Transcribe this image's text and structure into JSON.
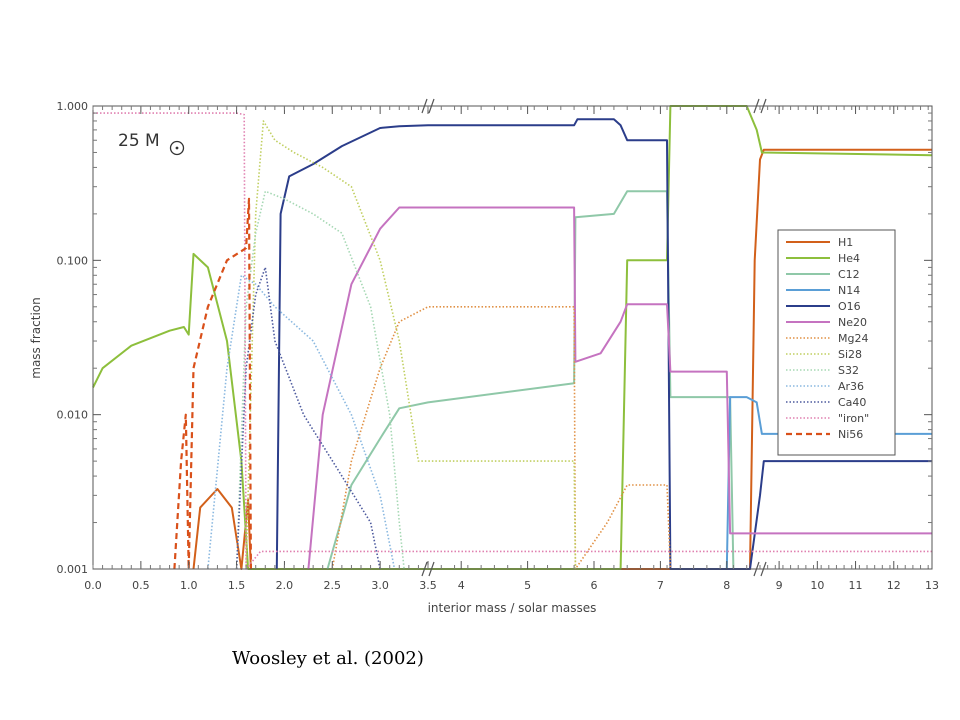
{
  "caption": "Woosley et al. (2002)",
  "chart_data": {
    "type": "line",
    "title": "",
    "annotation": "25 M",
    "xlabel": "interior mass / solar masses",
    "ylabel": "mass fraction",
    "yscale": "log",
    "ylim": [
      0.001,
      1.0
    ],
    "broken_x_axis": true,
    "x_segments": [
      {
        "range": [
          0.0,
          3.5
        ],
        "ticks": [
          "0.0",
          "0.5",
          "1.0",
          "1.5",
          "2.0",
          "2.5",
          "3.0",
          "3.5"
        ]
      },
      {
        "range": [
          3.5,
          8.5
        ],
        "ticks": [
          "4",
          "5",
          "6",
          "7",
          "8"
        ]
      },
      {
        "range": [
          8.5,
          13.0
        ],
        "ticks": [
          "9",
          "10",
          "11",
          "12",
          "13"
        ]
      }
    ],
    "y_ticks": [
      "0.001",
      "0.010",
      "0.100",
      "1.000"
    ],
    "legend_position": "right",
    "series": [
      {
        "name": "H1",
        "color": "#d2601a",
        "dash": "solid",
        "points": [
          [
            1.05,
            0.001
          ],
          [
            1.12,
            0.0025
          ],
          [
            1.3,
            0.0033
          ],
          [
            1.45,
            0.0025
          ],
          [
            1.55,
            0.001
          ],
          [
            1.62,
            0.0028
          ],
          [
            1.65,
            0.001
          ],
          [
            8.35,
            0.001
          ],
          [
            8.42,
            0.1
          ],
          [
            8.5,
            0.45
          ],
          [
            8.6,
            0.52
          ],
          [
            13.0,
            0.52
          ]
        ]
      },
      {
        "name": "He4",
        "color": "#8dbf3c",
        "dash": "solid",
        "points": [
          [
            0.0,
            0.015
          ],
          [
            0.1,
            0.02
          ],
          [
            0.4,
            0.028
          ],
          [
            0.8,
            0.035
          ],
          [
            0.95,
            0.037
          ],
          [
            1.0,
            0.033
          ],
          [
            1.05,
            0.11
          ],
          [
            1.2,
            0.09
          ],
          [
            1.4,
            0.03
          ],
          [
            1.55,
            0.005
          ],
          [
            1.62,
            0.001
          ],
          [
            6.4,
            0.001
          ],
          [
            6.5,
            0.1
          ],
          [
            6.9,
            0.1
          ],
          [
            7.1,
            0.1
          ],
          [
            7.15,
            1.0
          ],
          [
            8.0,
            1.0
          ],
          [
            8.3,
            1.0
          ],
          [
            8.45,
            0.7
          ],
          [
            8.55,
            0.5
          ],
          [
            13.0,
            0.48
          ]
        ]
      },
      {
        "name": "C12",
        "color": "#8fc8a8",
        "dash": "solid",
        "points": [
          [
            2.45,
            0.001
          ],
          [
            2.7,
            0.0035
          ],
          [
            3.0,
            0.007
          ],
          [
            3.2,
            0.011
          ],
          [
            3.5,
            0.012
          ],
          [
            5.7,
            0.016
          ],
          [
            5.72,
            0.19
          ],
          [
            6.3,
            0.2
          ],
          [
            6.5,
            0.28
          ],
          [
            7.1,
            0.28
          ],
          [
            7.15,
            0.013
          ],
          [
            8.0,
            0.013
          ],
          [
            8.05,
            0.013
          ],
          [
            8.1,
            0.001
          ]
        ]
      },
      {
        "name": "N14",
        "color": "#5a9ed6",
        "dash": "solid",
        "points": [
          [
            8.0,
            0.001
          ],
          [
            8.05,
            0.013
          ],
          [
            8.3,
            0.013
          ],
          [
            8.45,
            0.012
          ],
          [
            8.55,
            0.0075
          ],
          [
            13.0,
            0.0075
          ]
        ]
      },
      {
        "name": "O16",
        "color": "#2b3d8a",
        "dash": "solid",
        "points": [
          [
            1.92,
            0.001
          ],
          [
            1.96,
            0.2
          ],
          [
            2.05,
            0.35
          ],
          [
            2.3,
            0.42
          ],
          [
            2.6,
            0.55
          ],
          [
            3.0,
            0.72
          ],
          [
            3.2,
            0.74
          ],
          [
            3.5,
            0.75
          ],
          [
            5.7,
            0.75
          ],
          [
            5.75,
            0.82
          ],
          [
            6.3,
            0.82
          ],
          [
            6.4,
            0.75
          ],
          [
            6.5,
            0.6
          ],
          [
            7.1,
            0.6
          ],
          [
            7.15,
            0.001
          ],
          [
            8.35,
            0.001
          ],
          [
            8.5,
            0.003
          ],
          [
            8.6,
            0.005
          ],
          [
            13.0,
            0.005
          ]
        ]
      },
      {
        "name": "Ne20",
        "color": "#c573c0",
        "dash": "solid",
        "points": [
          [
            2.25,
            0.001
          ],
          [
            2.4,
            0.01
          ],
          [
            2.7,
            0.07
          ],
          [
            3.0,
            0.16
          ],
          [
            3.2,
            0.22
          ],
          [
            3.5,
            0.22
          ],
          [
            5.7,
            0.22
          ],
          [
            5.72,
            0.022
          ],
          [
            6.1,
            0.025
          ],
          [
            6.4,
            0.04
          ],
          [
            6.5,
            0.052
          ],
          [
            7.1,
            0.052
          ],
          [
            7.15,
            0.019
          ],
          [
            8.0,
            0.019
          ],
          [
            8.05,
            0.0017
          ],
          [
            13.0,
            0.0017
          ]
        ]
      },
      {
        "name": "Mg24",
        "color": "#e09044",
        "dash": "dotted",
        "points": [
          [
            2.5,
            0.001
          ],
          [
            2.7,
            0.005
          ],
          [
            3.0,
            0.02
          ],
          [
            3.2,
            0.04
          ],
          [
            3.5,
            0.05
          ],
          [
            5.7,
            0.05
          ],
          [
            5.72,
            0.001
          ],
          [
            6.2,
            0.002
          ],
          [
            6.5,
            0.0035
          ],
          [
            7.1,
            0.0035
          ],
          [
            7.15,
            0.001
          ]
        ]
      },
      {
        "name": "Si28",
        "color": "#c0cf60",
        "dash": "dotted",
        "points": [
          [
            1.6,
            0.001
          ],
          [
            1.7,
            0.2
          ],
          [
            1.78,
            0.8
          ],
          [
            1.9,
            0.6
          ],
          [
            2.1,
            0.5
          ],
          [
            2.4,
            0.4
          ],
          [
            2.7,
            0.3
          ],
          [
            3.0,
            0.1
          ],
          [
            3.2,
            0.03
          ],
          [
            3.4,
            0.005
          ],
          [
            5.7,
            0.005
          ],
          [
            5.72,
            0.001
          ]
        ]
      },
      {
        "name": "S32",
        "color": "#a6d8b4",
        "dash": "dotted",
        "points": [
          [
            1.5,
            0.001
          ],
          [
            1.6,
            0.05
          ],
          [
            1.7,
            0.15
          ],
          [
            1.8,
            0.28
          ],
          [
            2.0,
            0.25
          ],
          [
            2.3,
            0.2
          ],
          [
            2.6,
            0.15
          ],
          [
            2.9,
            0.05
          ],
          [
            3.1,
            0.01
          ],
          [
            3.2,
            0.002
          ],
          [
            3.25,
            0.001
          ]
        ]
      },
      {
        "name": "Ar36",
        "color": "#8ab8e0",
        "dash": "dotted",
        "points": [
          [
            1.2,
            0.001
          ],
          [
            1.4,
            0.02
          ],
          [
            1.55,
            0.08
          ],
          [
            1.7,
            0.07
          ],
          [
            1.9,
            0.05
          ],
          [
            2.3,
            0.03
          ],
          [
            2.7,
            0.01
          ],
          [
            3.0,
            0.003
          ],
          [
            3.15,
            0.001
          ]
        ]
      },
      {
        "name": "Ca40",
        "color": "#4d5a9e",
        "dash": "dotted",
        "points": [
          [
            1.5,
            0.001
          ],
          [
            1.6,
            0.02
          ],
          [
            1.7,
            0.06
          ],
          [
            1.8,
            0.09
          ],
          [
            1.9,
            0.03
          ],
          [
            2.2,
            0.01
          ],
          [
            2.6,
            0.004
          ],
          [
            2.9,
            0.002
          ],
          [
            3.0,
            0.001
          ]
        ]
      },
      {
        "name": "\"iron\"",
        "color": "#e080b0",
        "dash": "dotted",
        "points": [
          [
            0.0,
            0.9
          ],
          [
            1.5,
            0.9
          ],
          [
            1.58,
            0.88
          ],
          [
            1.6,
            0.001
          ],
          [
            1.75,
            0.0013
          ],
          [
            13.0,
            0.0013
          ]
        ]
      },
      {
        "name": "Ni56",
        "color": "#d9501a",
        "dash": "dashed",
        "points": [
          [
            0.85,
            0.001
          ],
          [
            0.92,
            0.005
          ],
          [
            0.97,
            0.01
          ],
          [
            1.0,
            0.001
          ],
          [
            1.05,
            0.02
          ],
          [
            1.2,
            0.05
          ],
          [
            1.4,
            0.1
          ],
          [
            1.6,
            0.12
          ],
          [
            1.63,
            0.25
          ],
          [
            1.65,
            0.001
          ]
        ]
      }
    ]
  }
}
